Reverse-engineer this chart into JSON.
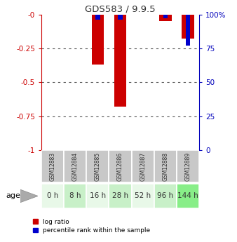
{
  "title": "GDS583 / 9.9.5",
  "samples": [
    "GSM12883",
    "GSM12884",
    "GSM12885",
    "GSM12886",
    "GSM12887",
    "GSM12888",
    "GSM12889"
  ],
  "ages": [
    "0 h",
    "8 h",
    "16 h",
    "28 h",
    "52 h",
    "96 h",
    "144 h"
  ],
  "log_ratio": [
    0,
    0,
    -0.37,
    -0.68,
    0,
    -0.05,
    -0.18
  ],
  "percentile_rank": [
    0,
    0,
    4.0,
    4.0,
    0,
    2.5,
    23.0
  ],
  "ylim_left": [
    -1,
    0
  ],
  "ylim_right": [
    0,
    100
  ],
  "yticks_left": [
    -1,
    -0.75,
    -0.5,
    -0.25,
    0
  ],
  "yticks_right": [
    0,
    25,
    50,
    75,
    100
  ],
  "bar_color_red": "#cc0000",
  "bar_color_blue": "#0000cc",
  "title_color": "#333333",
  "left_axis_color": "#cc0000",
  "right_axis_color": "#0000bb",
  "grid_color": "#555555",
  "sample_bg": "#c8c8c8",
  "age_bg_colors": [
    "#e8f8e8",
    "#c8f0c8",
    "#e8f8e8",
    "#c8f0c8",
    "#e8f8e8",
    "#c8f0c8",
    "#88ee88"
  ],
  "bar_width": 0.55,
  "perc_bar_width": 0.2
}
